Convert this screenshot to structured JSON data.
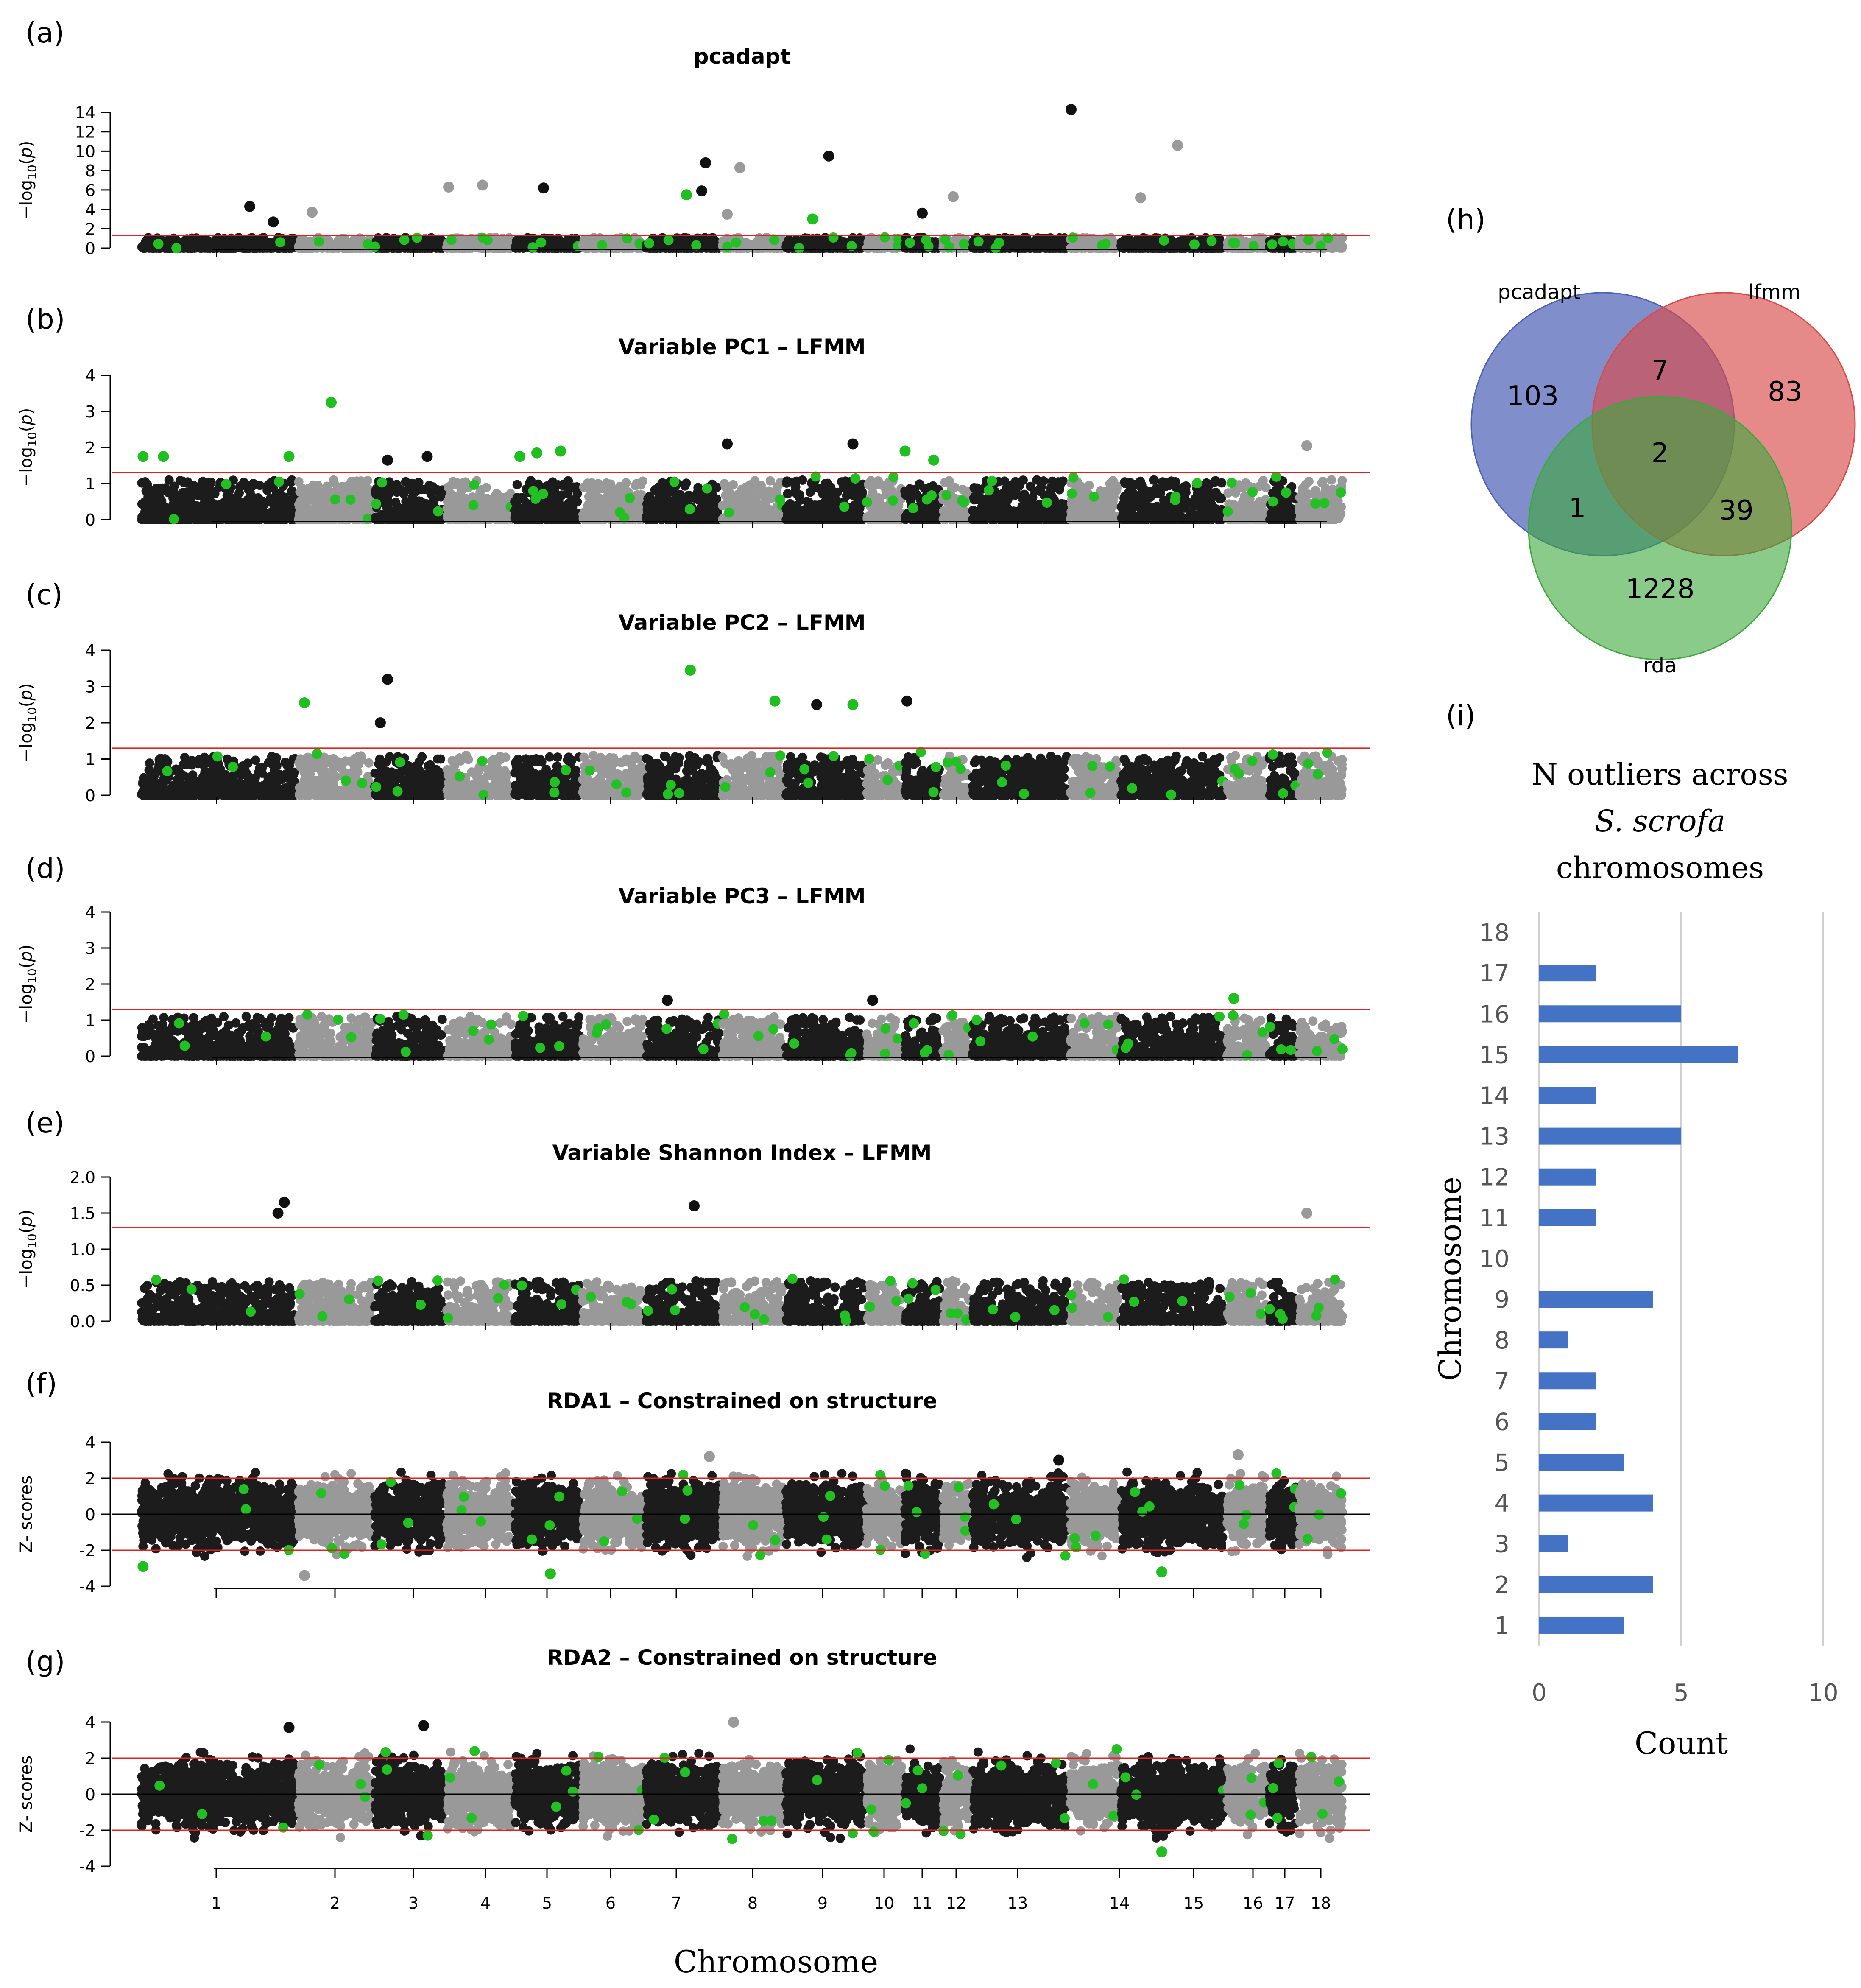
{
  "chart_data": [
    {
      "id": "a",
      "type": "scatter",
      "panel_label": "(a)",
      "title": "pcadapt",
      "ylabel": "−log10(p)",
      "ylim": [
        0,
        14
      ],
      "yticks": [
        0,
        2,
        4,
        6,
        8,
        10,
        12,
        14
      ],
      "thresholds": [
        1.3
      ],
      "chromosome_blocks": 18,
      "highlighted_points": [
        {
          "chrom": 1,
          "pos": 0.7,
          "y": 4.3,
          "color": "black"
        },
        {
          "chrom": 1,
          "pos": 0.85,
          "y": 2.7,
          "color": "black"
        },
        {
          "chrom": 2,
          "pos": 0.2,
          "y": 3.7,
          "color": "gray"
        },
        {
          "chrom": 4,
          "pos": 0.05,
          "y": 6.3,
          "color": "gray"
        },
        {
          "chrom": 4,
          "pos": 0.55,
          "y": 6.5,
          "color": "gray"
        },
        {
          "chrom": 5,
          "pos": 0.45,
          "y": 6.2,
          "color": "black"
        },
        {
          "chrom": 7,
          "pos": 0.55,
          "y": 5.5,
          "color": "green"
        },
        {
          "chrom": 7,
          "pos": 0.8,
          "y": 8.8,
          "color": "black"
        },
        {
          "chrom": 7,
          "pos": 0.75,
          "y": 5.9,
          "color": "black"
        },
        {
          "chrom": 8,
          "pos": 0.3,
          "y": 8.3,
          "color": "gray"
        },
        {
          "chrom": 8,
          "pos": 0.1,
          "y": 3.5,
          "color": "gray"
        },
        {
          "chrom": 9,
          "pos": 0.55,
          "y": 9.5,
          "color": "black"
        },
        {
          "chrom": 9,
          "pos": 0.35,
          "y": 3.0,
          "color": "green"
        },
        {
          "chrom": 11,
          "pos": 0.5,
          "y": 3.6,
          "color": "black"
        },
        {
          "chrom": 12,
          "pos": 0.4,
          "y": 5.3,
          "color": "gray"
        },
        {
          "chrom": 14,
          "pos": 0.05,
          "y": 14.3,
          "color": "black"
        },
        {
          "chrom": 15,
          "pos": 0.55,
          "y": 10.6,
          "color": "gray"
        },
        {
          "chrom": 15,
          "pos": 0.2,
          "y": 5.2,
          "color": "gray"
        }
      ]
    },
    {
      "id": "b",
      "type": "scatter",
      "panel_label": "(b)",
      "title": "Variable PC1 – LFMM",
      "ylabel": "−log10(p)",
      "ylim": [
        0,
        4
      ],
      "yticks": [
        0,
        1,
        2,
        3,
        4
      ],
      "thresholds": [
        1.3
      ],
      "highlighted_points": [
        {
          "chrom": 1,
          "pos": 0.02,
          "y": 1.75,
          "color": "green"
        },
        {
          "chrom": 1,
          "pos": 0.15,
          "y": 1.75,
          "color": "green"
        },
        {
          "chrom": 1,
          "pos": 0.95,
          "y": 1.75,
          "color": "green"
        },
        {
          "chrom": 2,
          "pos": 0.45,
          "y": 3.25,
          "color": "green"
        },
        {
          "chrom": 3,
          "pos": 0.2,
          "y": 1.65,
          "color": "black"
        },
        {
          "chrom": 3,
          "pos": 0.75,
          "y": 1.75,
          "color": "black"
        },
        {
          "chrom": 5,
          "pos": 0.1,
          "y": 1.75,
          "color": "green"
        },
        {
          "chrom": 5,
          "pos": 0.35,
          "y": 1.85,
          "color": "green"
        },
        {
          "chrom": 5,
          "pos": 0.7,
          "y": 1.9,
          "color": "green"
        },
        {
          "chrom": 8,
          "pos": 0.1,
          "y": 2.1,
          "color": "black"
        },
        {
          "chrom": 9,
          "pos": 0.85,
          "y": 2.1,
          "color": "black"
        },
        {
          "chrom": 11,
          "pos": 0.05,
          "y": 1.9,
          "color": "green"
        },
        {
          "chrom": 11,
          "pos": 0.8,
          "y": 1.65,
          "color": "green"
        },
        {
          "chrom": 18,
          "pos": 0.2,
          "y": 2.05,
          "color": "gray"
        }
      ]
    },
    {
      "id": "c",
      "type": "scatter",
      "panel_label": "(c)",
      "title": "Variable PC2 – LFMM",
      "ylabel": "−log10(p)",
      "ylim": [
        0,
        4
      ],
      "yticks": [
        0,
        1,
        2,
        3,
        4
      ],
      "thresholds": [
        1.3
      ],
      "highlighted_points": [
        {
          "chrom": 2,
          "pos": 0.1,
          "y": 2.55,
          "color": "green"
        },
        {
          "chrom": 3,
          "pos": 0.1,
          "y": 2.0,
          "color": "black"
        },
        {
          "chrom": 3,
          "pos": 0.2,
          "y": 3.2,
          "color": "black"
        },
        {
          "chrom": 7,
          "pos": 0.6,
          "y": 3.45,
          "color": "green"
        },
        {
          "chrom": 8,
          "pos": 0.85,
          "y": 2.6,
          "color": "green"
        },
        {
          "chrom": 9,
          "pos": 0.4,
          "y": 2.5,
          "color": "black"
        },
        {
          "chrom": 9,
          "pos": 0.85,
          "y": 2.5,
          "color": "green"
        },
        {
          "chrom": 11,
          "pos": 0.1,
          "y": 2.6,
          "color": "black"
        }
      ]
    },
    {
      "id": "d",
      "type": "scatter",
      "panel_label": "(d)",
      "title": "Variable PC3 – LFMM",
      "ylabel": "−log10(p)",
      "ylim": [
        0,
        4
      ],
      "yticks": [
        0,
        1,
        2,
        3,
        4
      ],
      "thresholds": [
        1.3
      ],
      "highlighted_points": [
        {
          "chrom": 7,
          "pos": 0.3,
          "y": 1.55,
          "color": "black"
        },
        {
          "chrom": 10,
          "pos": 0.2,
          "y": 1.55,
          "color": "black"
        },
        {
          "chrom": 16,
          "pos": 0.2,
          "y": 1.6,
          "color": "green"
        }
      ]
    },
    {
      "id": "e",
      "type": "scatter",
      "panel_label": "(e)",
      "title": "Variable Shannon Index – LFMM",
      "ylabel": "−log10(p)",
      "ylim": [
        0,
        2.0
      ],
      "yticks": [
        0.0,
        0.5,
        1.0,
        1.5,
        2.0
      ],
      "ytick_labels": [
        "0.0",
        "0.5",
        "1.0",
        "1.5",
        "2.0"
      ],
      "thresholds": [
        1.3
      ],
      "highlighted_points": [
        {
          "chrom": 1,
          "pos": 0.92,
          "y": 1.65,
          "color": "black"
        },
        {
          "chrom": 1,
          "pos": 0.88,
          "y": 1.5,
          "color": "black"
        },
        {
          "chrom": 7,
          "pos": 0.65,
          "y": 1.6,
          "color": "black"
        },
        {
          "chrom": 18,
          "pos": 0.2,
          "y": 1.5,
          "color": "gray"
        }
      ]
    },
    {
      "id": "f",
      "type": "scatter",
      "panel_label": "(f)",
      "title": "RDA1 – Constrained on structure",
      "ylabel": "Z- scores",
      "ylim": [
        -4,
        4
      ],
      "yticks": [
        -4,
        -2,
        0,
        2,
        4
      ],
      "thresholds": [
        2,
        -2
      ],
      "zero_line": true,
      "highlighted_points": [
        {
          "chrom": 1,
          "pos": 0.02,
          "y": -2.9,
          "color": "green"
        },
        {
          "chrom": 2,
          "pos": 0.1,
          "y": -3.4,
          "color": "gray"
        },
        {
          "chrom": 5,
          "pos": 0.55,
          "y": -3.3,
          "color": "green"
        },
        {
          "chrom": 7,
          "pos": 0.85,
          "y": 3.2,
          "color": "gray"
        },
        {
          "chrom": 13,
          "pos": 0.9,
          "y": 3.0,
          "color": "black"
        },
        {
          "chrom": 15,
          "pos": 0.4,
          "y": -3.2,
          "color": "green"
        },
        {
          "chrom": 16,
          "pos": 0.3,
          "y": 3.3,
          "color": "gray"
        }
      ]
    },
    {
      "id": "g",
      "type": "scatter",
      "panel_label": "(g)",
      "title": "RDA2 – Constrained on structure",
      "ylabel": "Z- scores",
      "ylim": [
        -4,
        4
      ],
      "yticks": [
        -4,
        -2,
        0,
        2,
        4
      ],
      "thresholds": [
        2,
        -2
      ],
      "zero_line": true,
      "xlabel": "Chromosome",
      "xticks": [
        "1",
        "2",
        "3",
        "4",
        "5",
        "6",
        "7",
        "8",
        "9",
        "10",
        "11",
        "12",
        "13",
        "14",
        "15",
        "16",
        "17",
        "18"
      ],
      "highlighted_points": [
        {
          "chrom": 1,
          "pos": 0.95,
          "y": 3.7,
          "color": "black"
        },
        {
          "chrom": 3,
          "pos": 0.7,
          "y": 3.8,
          "color": "black"
        },
        {
          "chrom": 8,
          "pos": 0.2,
          "y": 4.0,
          "color": "gray"
        },
        {
          "chrom": 15,
          "pos": 0.4,
          "y": -3.2,
          "color": "green"
        }
      ]
    },
    {
      "id": "h",
      "type": "venn",
      "panel_label": "(h)",
      "sets": [
        "pcadapt",
        "lfmm",
        "rda"
      ],
      "regions": {
        "pcadapt_only": 103,
        "lfmm_only": 83,
        "rda_only": 1228,
        "pcadapt_lfmm": 7,
        "pcadapt_rda": 1,
        "lfmm_rda": 39,
        "all_three": 2
      },
      "colors": {
        "pcadapt": "#4a5fb5",
        "lfmm": "#d84a4a",
        "rda": "#3ca83c"
      }
    },
    {
      "id": "i",
      "type": "bar",
      "orientation": "horizontal",
      "panel_label": "(i)",
      "title_line1": "N outliers across",
      "title_line2": "S. scrofa",
      "title_line3": "chromosomes",
      "ylabel": "Chromosome",
      "xlabel": "Count",
      "categories": [
        "1",
        "2",
        "3",
        "4",
        "5",
        "6",
        "7",
        "8",
        "9",
        "10",
        "11",
        "12",
        "13",
        "14",
        "15",
        "16",
        "17",
        "18"
      ],
      "values": [
        3,
        4,
        1,
        4,
        3,
        2,
        2,
        1,
        4,
        0,
        2,
        2,
        5,
        2,
        7,
        5,
        2,
        0
      ],
      "xlim": [
        0,
        10
      ],
      "xticks": [
        0,
        5,
        10
      ],
      "bar_color": "#4472c4"
    }
  ]
}
